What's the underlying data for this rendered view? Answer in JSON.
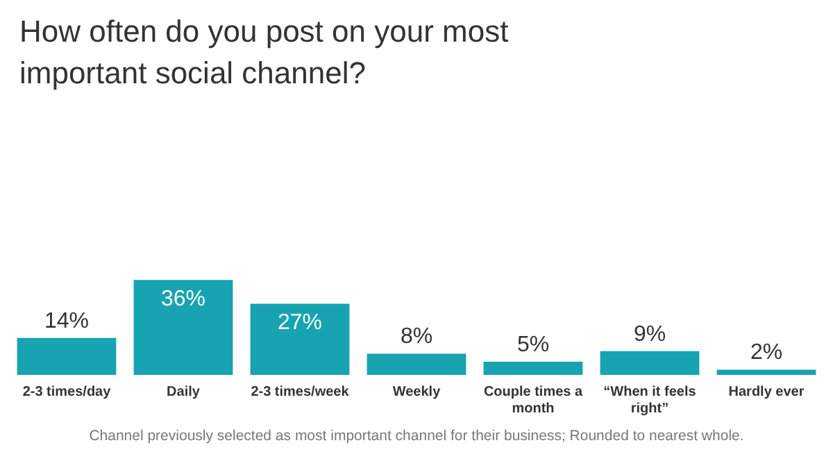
{
  "chart_data": {
    "type": "bar",
    "title": "How often do you post on your most important social channel?",
    "categories": [
      "2-3 times/day",
      "Daily",
      "2-3 times/week",
      "Weekly",
      "Couple times a month",
      "“When it feels right”",
      "Hardly ever"
    ],
    "values": [
      14,
      36,
      27,
      8,
      5,
      9,
      2
    ],
    "value_labels": [
      "14%",
      "36%",
      "27%",
      "8%",
      "5%",
      "9%",
      "2%"
    ],
    "color": "#17a3b1",
    "grid": false,
    "legend": false,
    "annotations": [
      "Channel previously selected as most important channel for their business; Rounded to nearest whole."
    ]
  }
}
